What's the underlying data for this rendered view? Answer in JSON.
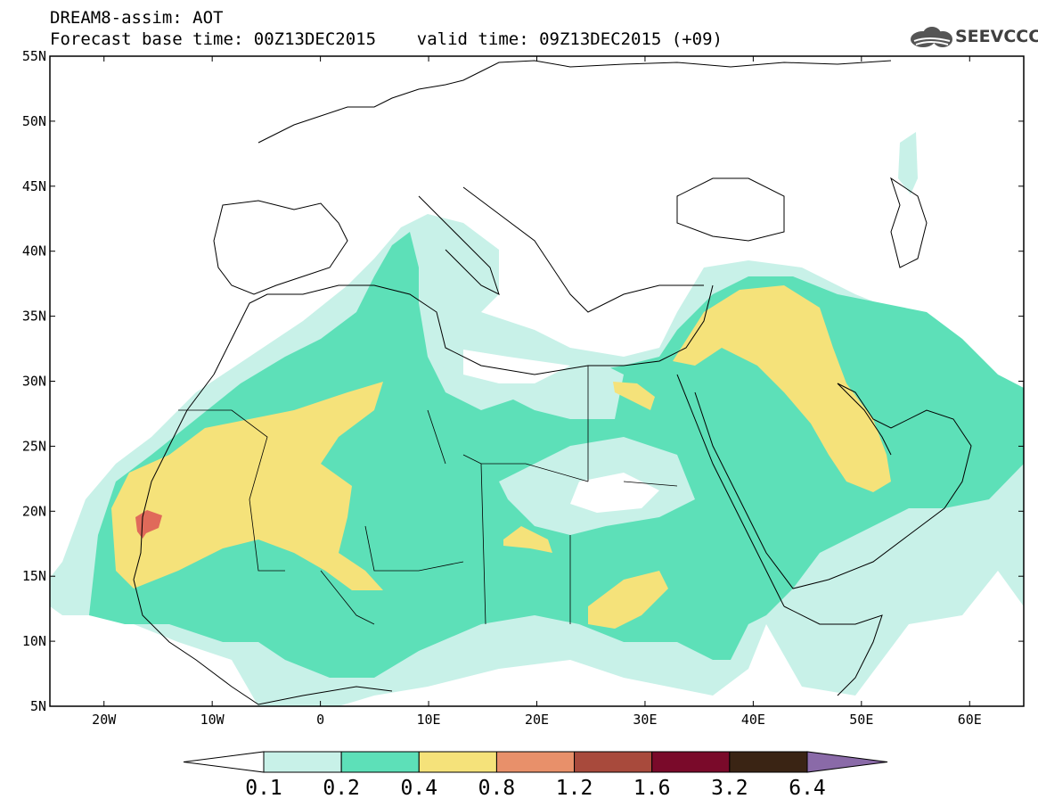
{
  "header": {
    "line1": "DREAM8-assim: AOT",
    "line2": "Forecast base time: 00Z13DEC2015    valid time: 09Z13DEC2015 (+09)",
    "logo_text": "SEEVCCC"
  },
  "map": {
    "variable": "AOT",
    "lat_range": [
      5,
      55
    ],
    "lon_range": [
      -25,
      65
    ],
    "lat_labels": [
      "55N",
      "50N",
      "45N",
      "40N",
      "35N",
      "30N",
      "25N",
      "20N",
      "15N",
      "10N",
      "5N"
    ],
    "lon_labels": [
      "20W",
      "10W",
      "0",
      "10E",
      "20E",
      "30E",
      "40E",
      "50E",
      "60E"
    ]
  },
  "legend": {
    "labels": [
      "0.1",
      "0.2",
      "0.4",
      "0.8",
      "1.2",
      "1.6",
      "3.2",
      "6.4"
    ],
    "colors": [
      "#ffffff",
      "#c8f1e8",
      "#5de0b8",
      "#f5e27a",
      "#e8906a",
      "#a84a3c",
      "#7a0a2a",
      "#3a2414",
      "#8a6aa8"
    ]
  }
}
